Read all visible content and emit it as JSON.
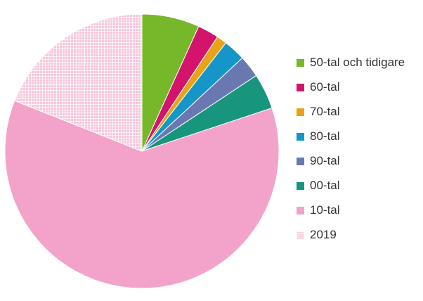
{
  "chart_data": {
    "type": "pie",
    "title": "",
    "start_angle_deg": 0,
    "direction": "clockwise",
    "legend_position": "right",
    "slices": [
      {
        "label": "50-tal och tidigare",
        "value": 6.8,
        "color": "#76B82A",
        "pattern": "solid"
      },
      {
        "label": "60-tal",
        "value": 2.5,
        "color": "#D4136D",
        "pattern": "solid"
      },
      {
        "label": "70-tal",
        "value": 1.2,
        "color": "#E8A317",
        "pattern": "solid"
      },
      {
        "label": "80-tal",
        "value": 2.6,
        "color": "#1497C8",
        "pattern": "solid"
      },
      {
        "label": "90-tal",
        "value": 2.6,
        "color": "#6A78B2",
        "pattern": "solid"
      },
      {
        "label": "00-tal",
        "value": 4.2,
        "color": "#18967D",
        "pattern": "solid"
      },
      {
        "label": "10-tal",
        "value": 61.1,
        "color": "#F3A3C9",
        "pattern": "solid"
      },
      {
        "label": "2019",
        "value": 19.0,
        "color": "#F3A3C9",
        "pattern": "checkered"
      }
    ]
  }
}
